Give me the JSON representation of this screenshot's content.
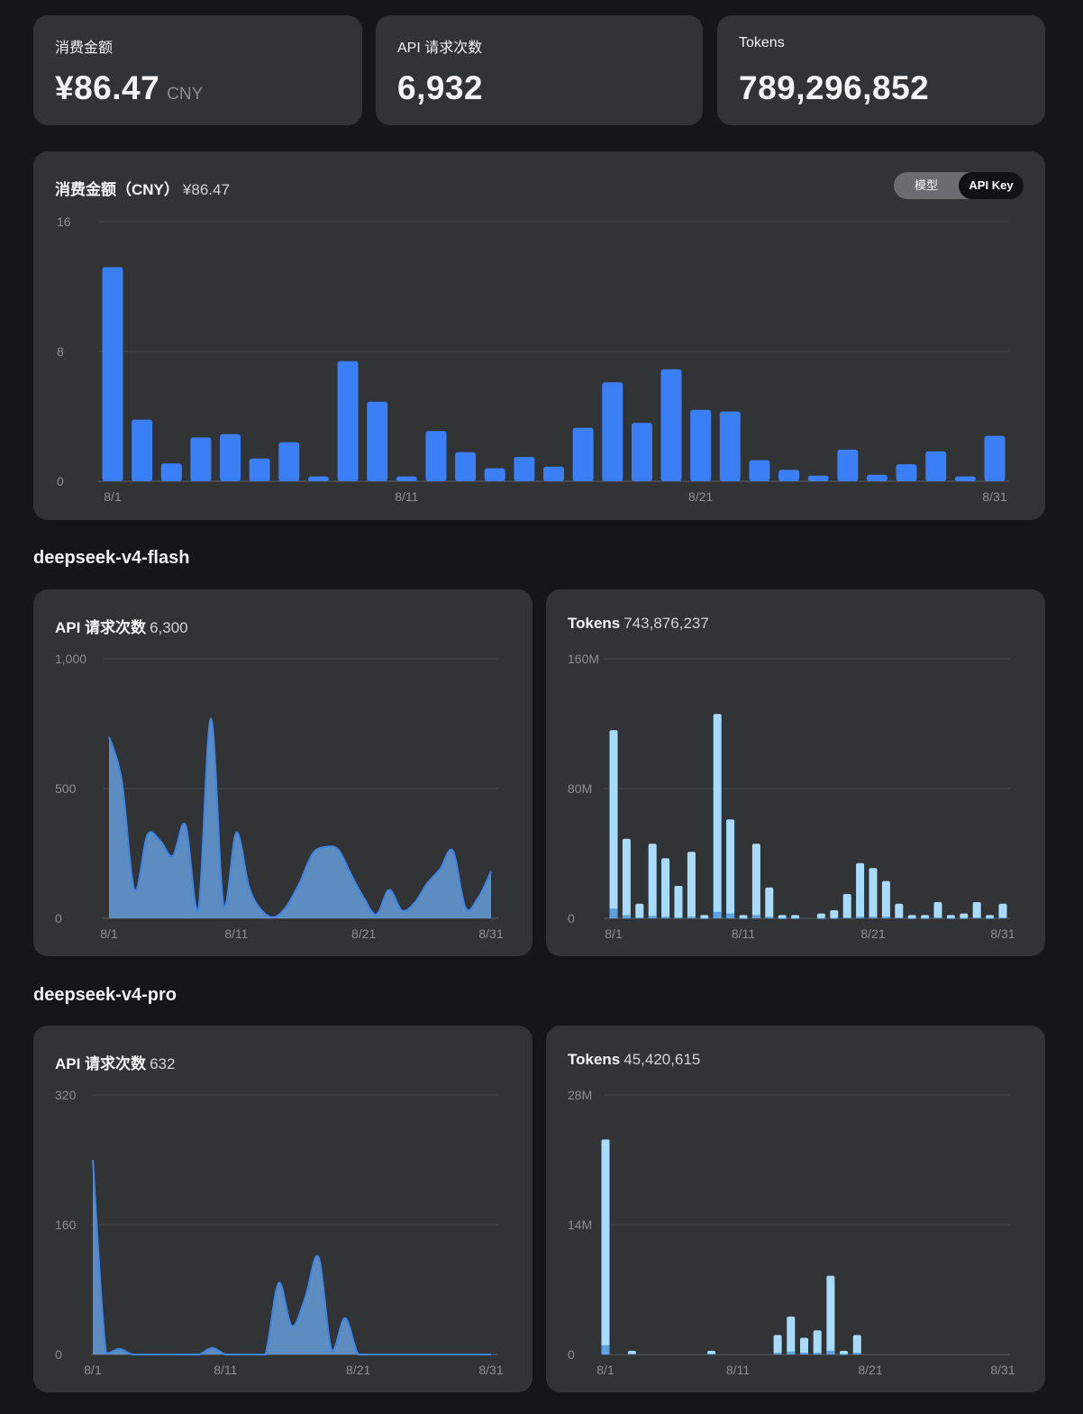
{
  "summary": {
    "cost": {
      "label": "消费金额",
      "value": "¥86.47",
      "unit": "CNY"
    },
    "requests": {
      "label": "API 请求次数",
      "value": "6,932"
    },
    "tokens": {
      "label": "Tokens",
      "value": "789,296,852"
    }
  },
  "cost_chart": {
    "title_bold": "消费金额（CNY）",
    "title_value": "¥86.47",
    "toggle": {
      "options": [
        "模型",
        "API Key"
      ],
      "selected": "API Key"
    }
  },
  "sections": [
    {
      "model": "deepseek-v4-flash",
      "requests_title": "API 请求次数",
      "requests_total": "6,300",
      "tokens_title": "Tokens",
      "tokens_total": "743,876,237"
    },
    {
      "model": "deepseek-v4-pro",
      "requests_title": "API 请求次数",
      "requests_total": "632",
      "tokens_title": "Tokens",
      "tokens_total": "45,420,615"
    }
  ],
  "colors": {
    "bar_blue": "#3a7ff5",
    "area_fill": "#6091c8",
    "area_line": "#3f85e6",
    "light_bar": "#a7dcff",
    "dark_segment": "#5aa2e2"
  },
  "chart_data": [
    {
      "type": "bar",
      "title": "消费金额（CNY）",
      "x": [
        "8/1",
        "8/2",
        "8/3",
        "8/4",
        "8/5",
        "8/6",
        "8/7",
        "8/8",
        "8/9",
        "8/10",
        "8/11",
        "8/12",
        "8/13",
        "8/14",
        "8/15",
        "8/16",
        "8/17",
        "8/18",
        "8/19",
        "8/20",
        "8/21",
        "8/22",
        "8/23",
        "8/24",
        "8/25",
        "8/26",
        "8/27",
        "8/28",
        "8/29",
        "8/30",
        "8/31"
      ],
      "xticks": [
        "8/1",
        "8/11",
        "8/21",
        "8/31"
      ],
      "yticks": [
        "0",
        "8",
        "16"
      ],
      "ylim": [
        0,
        16
      ],
      "values": [
        13.2,
        3.8,
        1.1,
        2.7,
        2.9,
        1.4,
        2.4,
        0.3,
        7.4,
        4.9,
        0.3,
        3.1,
        1.8,
        0.8,
        1.5,
        0.9,
        3.3,
        6.1,
        3.6,
        6.9,
        4.4,
        4.3,
        1.3,
        0.7,
        0.35,
        1.95,
        0.4,
        1.05,
        1.85,
        0.3,
        2.8
      ],
      "grid": true
    },
    {
      "type": "area",
      "title": "API 请求次数",
      "x": [
        "8/1",
        "8/2",
        "8/3",
        "8/4",
        "8/5",
        "8/6",
        "8/7",
        "8/8",
        "8/9",
        "8/10",
        "8/11",
        "8/12",
        "8/13",
        "8/14",
        "8/15",
        "8/16",
        "8/17",
        "8/18",
        "8/19",
        "8/20",
        "8/21",
        "8/22",
        "8/23",
        "8/24",
        "8/25",
        "8/26",
        "8/27",
        "8/28",
        "8/29",
        "8/30",
        "8/31"
      ],
      "xticks": [
        "8/1",
        "8/11",
        "8/21",
        "8/31"
      ],
      "yticks": [
        "0",
        "500",
        "1,000"
      ],
      "ylim": [
        0,
        1000
      ],
      "values": [
        700,
        530,
        110,
        320,
        300,
        240,
        360,
        30,
        770,
        50,
        330,
        120,
        30,
        5,
        50,
        140,
        250,
        275,
        265,
        170,
        80,
        15,
        110,
        30,
        60,
        135,
        190,
        260,
        40,
        80,
        180
      ],
      "grid": true
    },
    {
      "type": "bar",
      "title": "Tokens",
      "x": [
        "8/1",
        "8/2",
        "8/3",
        "8/4",
        "8/5",
        "8/6",
        "8/7",
        "8/8",
        "8/9",
        "8/10",
        "8/11",
        "8/12",
        "8/13",
        "8/14",
        "8/15",
        "8/16",
        "8/17",
        "8/18",
        "8/19",
        "8/20",
        "8/21",
        "8/22",
        "8/23",
        "8/24",
        "8/25",
        "8/26",
        "8/27",
        "8/28",
        "8/29",
        "8/30",
        "8/31"
      ],
      "xticks": [
        "8/1",
        "8/11",
        "8/21",
        "8/31"
      ],
      "yticks": [
        "0",
        "80M",
        "160M"
      ],
      "ylim": [
        0,
        160
      ],
      "values": [
        116,
        49,
        9,
        46,
        37,
        20,
        41,
        2,
        126,
        61,
        2,
        46,
        19,
        2,
        2,
        0,
        3,
        5,
        15,
        34,
        31,
        23,
        9,
        2,
        2,
        10,
        2,
        3,
        10,
        2,
        9
      ],
      "dark_values": [
        6,
        2,
        0.5,
        1.5,
        1,
        0.5,
        1,
        0.2,
        4,
        3,
        0.2,
        2,
        1,
        0.2,
        0.2,
        0,
        0.2,
        0.2,
        0.5,
        1,
        1,
        1,
        0.5,
        0.2,
        0.2,
        0.5,
        0.2,
        0.2,
        0.5,
        0.2,
        0.5
      ],
      "grid": true
    },
    {
      "type": "area",
      "title": "API 请求次数",
      "x": [
        "8/1",
        "8/2",
        "8/3",
        "8/4",
        "8/5",
        "8/6",
        "8/7",
        "8/8",
        "8/9",
        "8/10",
        "8/11",
        "8/12",
        "8/13",
        "8/14",
        "8/15",
        "8/16",
        "8/17",
        "8/18",
        "8/19",
        "8/20",
        "8/21",
        "8/22",
        "8/23",
        "8/24",
        "8/25",
        "8/26",
        "8/27",
        "8/28",
        "8/29",
        "8/30",
        "8/31"
      ],
      "xticks": [
        "8/1",
        "8/11",
        "8/21",
        "8/31"
      ],
      "yticks": [
        "0",
        "160",
        "320"
      ],
      "ylim": [
        0,
        320
      ],
      "values": [
        240,
        2,
        7,
        0,
        0,
        0,
        0,
        0,
        0,
        8,
        0,
        0,
        0,
        0,
        88,
        35,
        70,
        120,
        5,
        45,
        0,
        0,
        0,
        0,
        0,
        0,
        0,
        0,
        0,
        0,
        0
      ],
      "grid": true
    },
    {
      "type": "bar",
      "title": "Tokens",
      "x": [
        "8/1",
        "8/2",
        "8/3",
        "8/4",
        "8/5",
        "8/6",
        "8/7",
        "8/8",
        "8/9",
        "8/10",
        "8/11",
        "8/12",
        "8/13",
        "8/14",
        "8/15",
        "8/16",
        "8/17",
        "8/18",
        "8/19",
        "8/20",
        "8/21",
        "8/22",
        "8/23",
        "8/24",
        "8/25",
        "8/26",
        "8/27",
        "8/28",
        "8/29",
        "8/30",
        "8/31"
      ],
      "xticks": [
        "8/1",
        "8/11",
        "8/21",
        "8/31"
      ],
      "yticks": [
        "0",
        "14M",
        "28M"
      ],
      "ylim": [
        0,
        28
      ],
      "values": [
        23.2,
        0,
        0.4,
        0,
        0,
        0,
        0,
        0,
        0.4,
        0,
        0,
        0,
        0,
        2.1,
        4.1,
        1.8,
        2.6,
        8.5,
        0.4,
        2.1,
        0,
        0,
        0,
        0,
        0,
        0,
        0,
        0,
        0,
        0,
        0
      ],
      "dark_values": [
        1.0,
        0,
        0.1,
        0,
        0,
        0,
        0,
        0,
        0.1,
        0,
        0,
        0,
        0,
        0.2,
        0.3,
        0.2,
        0.2,
        0.4,
        0.05,
        0.2,
        0,
        0,
        0,
        0,
        0,
        0,
        0,
        0,
        0,
        0,
        0
      ],
      "grid": true
    }
  ]
}
